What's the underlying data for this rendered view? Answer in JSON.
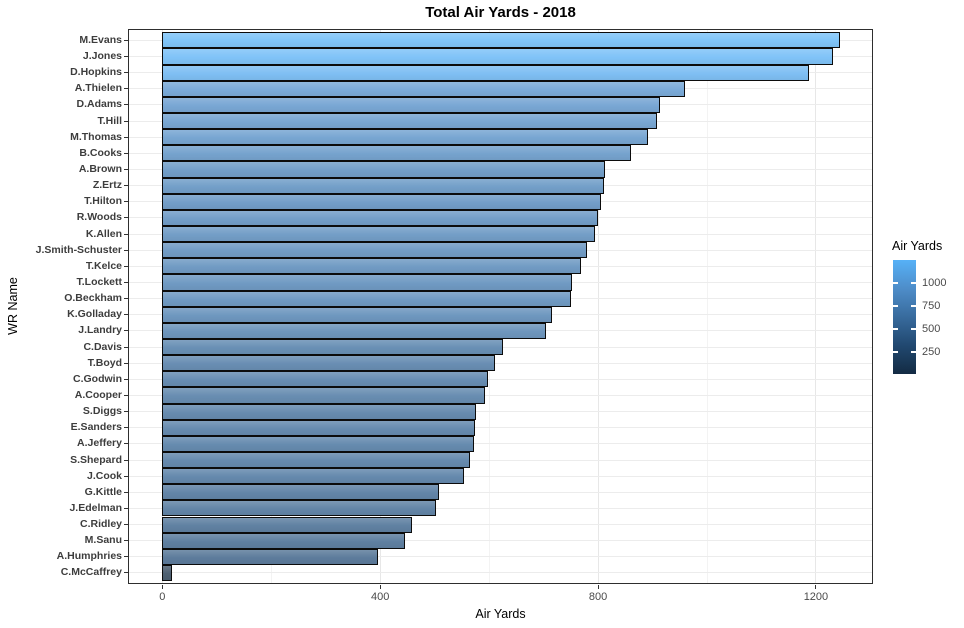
{
  "chart_data": {
    "type": "bar",
    "orientation": "horizontal",
    "title": "Total Air Yards - 2018",
    "xlabel": "Air Yards",
    "ylabel": "WR Name",
    "categories": [
      "M.Evans",
      "J.Jones",
      "D.Hopkins",
      "A.Thielen",
      "D.Adams",
      "T.Hill",
      "M.Thomas",
      "B.Cooks",
      "A.Brown",
      "Z.Ertz",
      "T.Hilton",
      "R.Woods",
      "K.Allen",
      "J.Smith-Schuster",
      "T.Kelce",
      "T.Lockett",
      "O.Beckham",
      "K.Golladay",
      "J.Landry",
      "C.Davis",
      "T.Boyd",
      "C.Godwin",
      "A.Cooper",
      "S.Diggs",
      "E.Sanders",
      "A.Jeffery",
      "S.Shepard",
      "J.Cook",
      "G.Kittle",
      "J.Edelman",
      "C.Ridley",
      "M.Sanu",
      "A.Humphries",
      "C.McCaffrey"
    ],
    "values": [
      1244,
      1231,
      1187,
      959,
      913,
      908,
      892,
      861,
      812,
      810,
      805,
      800,
      795,
      779,
      769,
      753,
      750,
      715,
      705,
      626,
      611,
      598,
      592,
      576,
      574,
      572,
      565,
      554,
      508,
      503,
      458,
      446,
      396,
      18
    ],
    "x_major_ticks": [
      0,
      400,
      800,
      1200
    ],
    "x_minor_ticks": [
      200,
      600,
      1000
    ],
    "xlim": [
      -61,
      1303
    ],
    "grid": true,
    "bar_sort": "descending",
    "legend": {
      "title": "Air Yards",
      "position": "right",
      "ticks": [
        1000,
        750,
        500,
        250
      ],
      "min": 18,
      "max": 1244
    },
    "colors": {
      "scale_low": "#132B43",
      "scale_high": "#56B1F7",
      "scale_stops": [
        "#132B43",
        "#214870",
        "#386B9D",
        "#4E8DC9",
        "#56B1F7"
      ],
      "bar_alpha_over_white": 0.75,
      "bar_border": "#0c0c0c",
      "grid_major": "#e7e7e7",
      "grid_minor": "#f3f3f3",
      "panel_border": "#2e2e2e",
      "axis_text": "#4a4a4a",
      "y_axis_text": "#3d3d3d",
      "title_color": "#000000"
    }
  }
}
